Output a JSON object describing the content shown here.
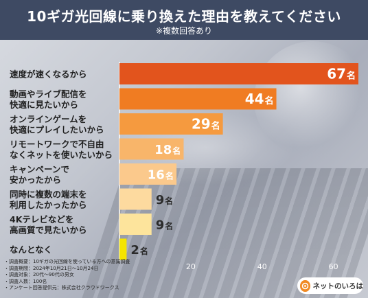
{
  "header": {
    "title": "10ギガ光回線に乗り換えた理由を教えてください",
    "subtitle": "※複数回答あり"
  },
  "chart_data": {
    "type": "bar",
    "orientation": "horizontal",
    "categories": [
      [
        "速度が速くなるから"
      ],
      [
        "動画やライブ配信を",
        "快適に見たいから"
      ],
      [
        "オンラインゲームを",
        "快適にプレイしたいから"
      ],
      [
        "リモートワークで不自由",
        "なくネットを使いたいから"
      ],
      [
        "キャンペーンで",
        "安かったから"
      ],
      [
        "同時に複数の端末を",
        "利用したかったから"
      ],
      [
        "4Kテレビなどを",
        "高画質で見たいから"
      ],
      [
        "なんとなく"
      ]
    ],
    "values": [
      67,
      44,
      29,
      18,
      16,
      9,
      9,
      2
    ],
    "value_unit": "名",
    "xlim": [
      0,
      67
    ],
    "xticks": [
      20,
      40,
      60
    ],
    "grid": false,
    "bar_colors": [
      "#e2541d",
      "#f07c22",
      "#f59a3f",
      "#f8b56a",
      "#fbc98c",
      "#fdda9f",
      "#fde49c",
      "#f5e500"
    ]
  },
  "notes": [
    "・調査概要：10ギガの光回線を使っている方への意識調査",
    "・調査期間：2024年10月21日～10月24日",
    "・調査対象：20代～90代の男女",
    "・調査人数：100名",
    "・アンケート回答提供元：株式会社クラウドワークス"
  ],
  "logo": {
    "text": "ネットのいろは",
    "icon": "logo-mark-icon"
  }
}
